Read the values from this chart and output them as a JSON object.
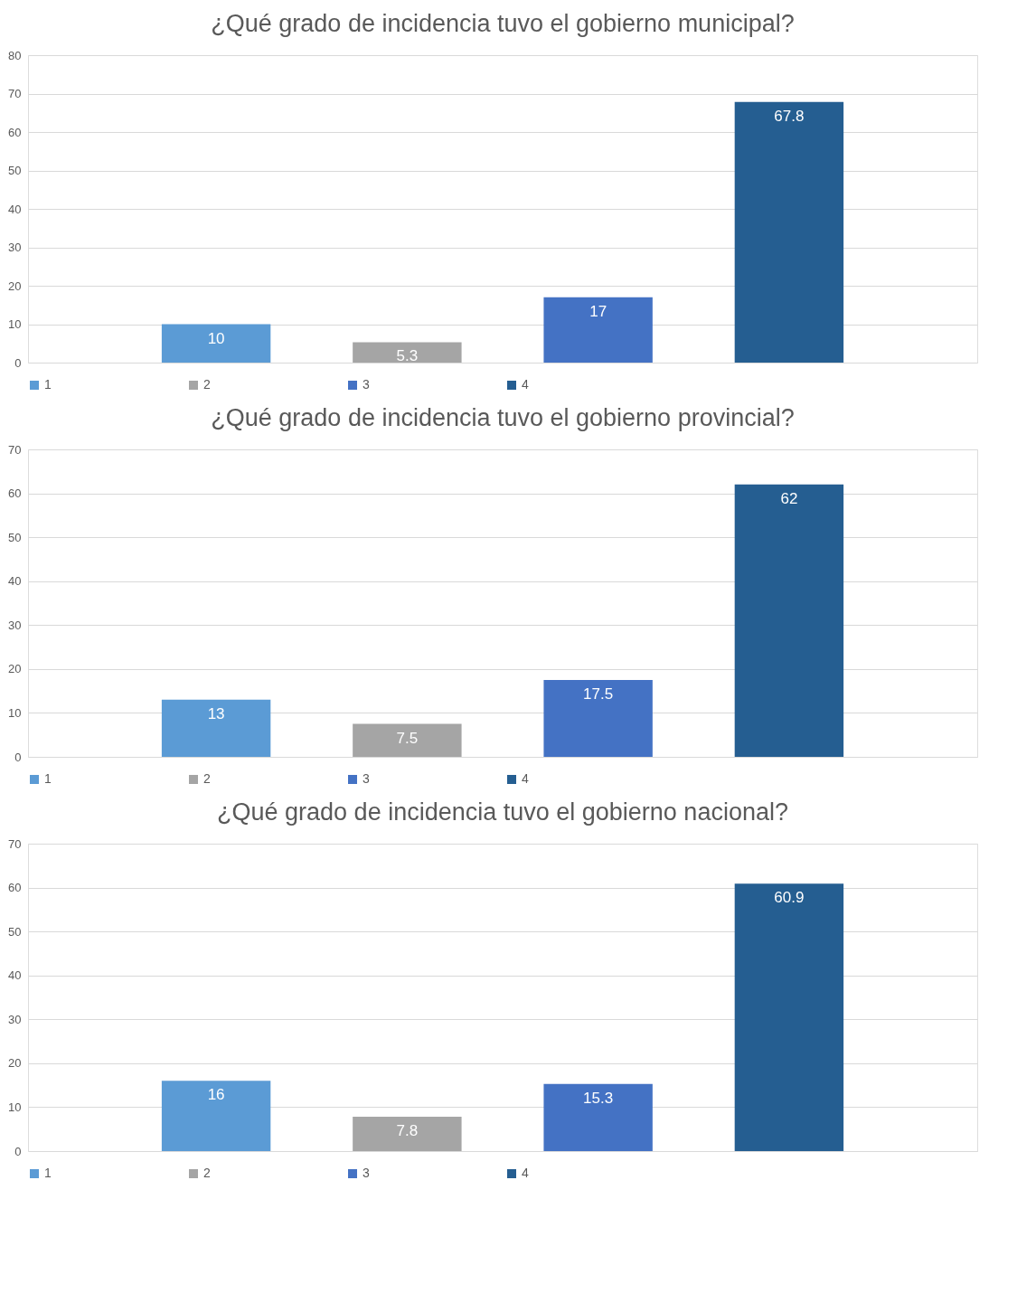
{
  "chart_data": [
    {
      "type": "bar",
      "title": "¿Qué grado de incidencia tuvo el gobierno municipal?",
      "categories": [
        null
      ],
      "series": [
        {
          "name": "1",
          "color": "#5b9bd5",
          "values": [
            10
          ]
        },
        {
          "name": "2",
          "color": "#a5a5a5",
          "values": [
            5.3
          ]
        },
        {
          "name": "3",
          "color": "#4472c4",
          "values": [
            17
          ]
        },
        {
          "name": "4",
          "color": "#255e91",
          "values": [
            67.8
          ]
        }
      ],
      "ylim": [
        0,
        80
      ],
      "yticks": [
        0,
        10,
        20,
        30,
        40,
        50,
        60,
        70,
        80
      ],
      "grid": "y",
      "legend": "bottom",
      "data_labels": true
    },
    {
      "type": "bar",
      "title": "¿Qué grado de incidencia tuvo el gobierno provincial?",
      "categories": [
        null
      ],
      "series": [
        {
          "name": "1",
          "color": "#5b9bd5",
          "values": [
            13
          ]
        },
        {
          "name": "2",
          "color": "#a5a5a5",
          "values": [
            7.5
          ]
        },
        {
          "name": "3",
          "color": "#4472c4",
          "values": [
            17.5
          ]
        },
        {
          "name": "4",
          "color": "#255e91",
          "values": [
            62
          ]
        }
      ],
      "ylim": [
        0,
        70
      ],
      "yticks": [
        0,
        10,
        20,
        30,
        40,
        50,
        60,
        70
      ],
      "grid": "y",
      "legend": "bottom",
      "data_labels": true
    },
    {
      "type": "bar",
      "title": "¿Qué grado de incidencia tuvo el gobierno nacional?",
      "categories": [
        null
      ],
      "series": [
        {
          "name": "1",
          "color": "#5b9bd5",
          "values": [
            16
          ]
        },
        {
          "name": "2",
          "color": "#a5a5a5",
          "values": [
            7.8
          ]
        },
        {
          "name": "3",
          "color": "#4472c4",
          "values": [
            15.3
          ]
        },
        {
          "name": "4",
          "color": "#255e91",
          "values": [
            60.9
          ]
        }
      ],
      "ylim": [
        0,
        70
      ],
      "yticks": [
        0,
        10,
        20,
        30,
        40,
        50,
        60,
        70
      ],
      "grid": "y",
      "legend": "bottom",
      "data_labels": true
    }
  ]
}
